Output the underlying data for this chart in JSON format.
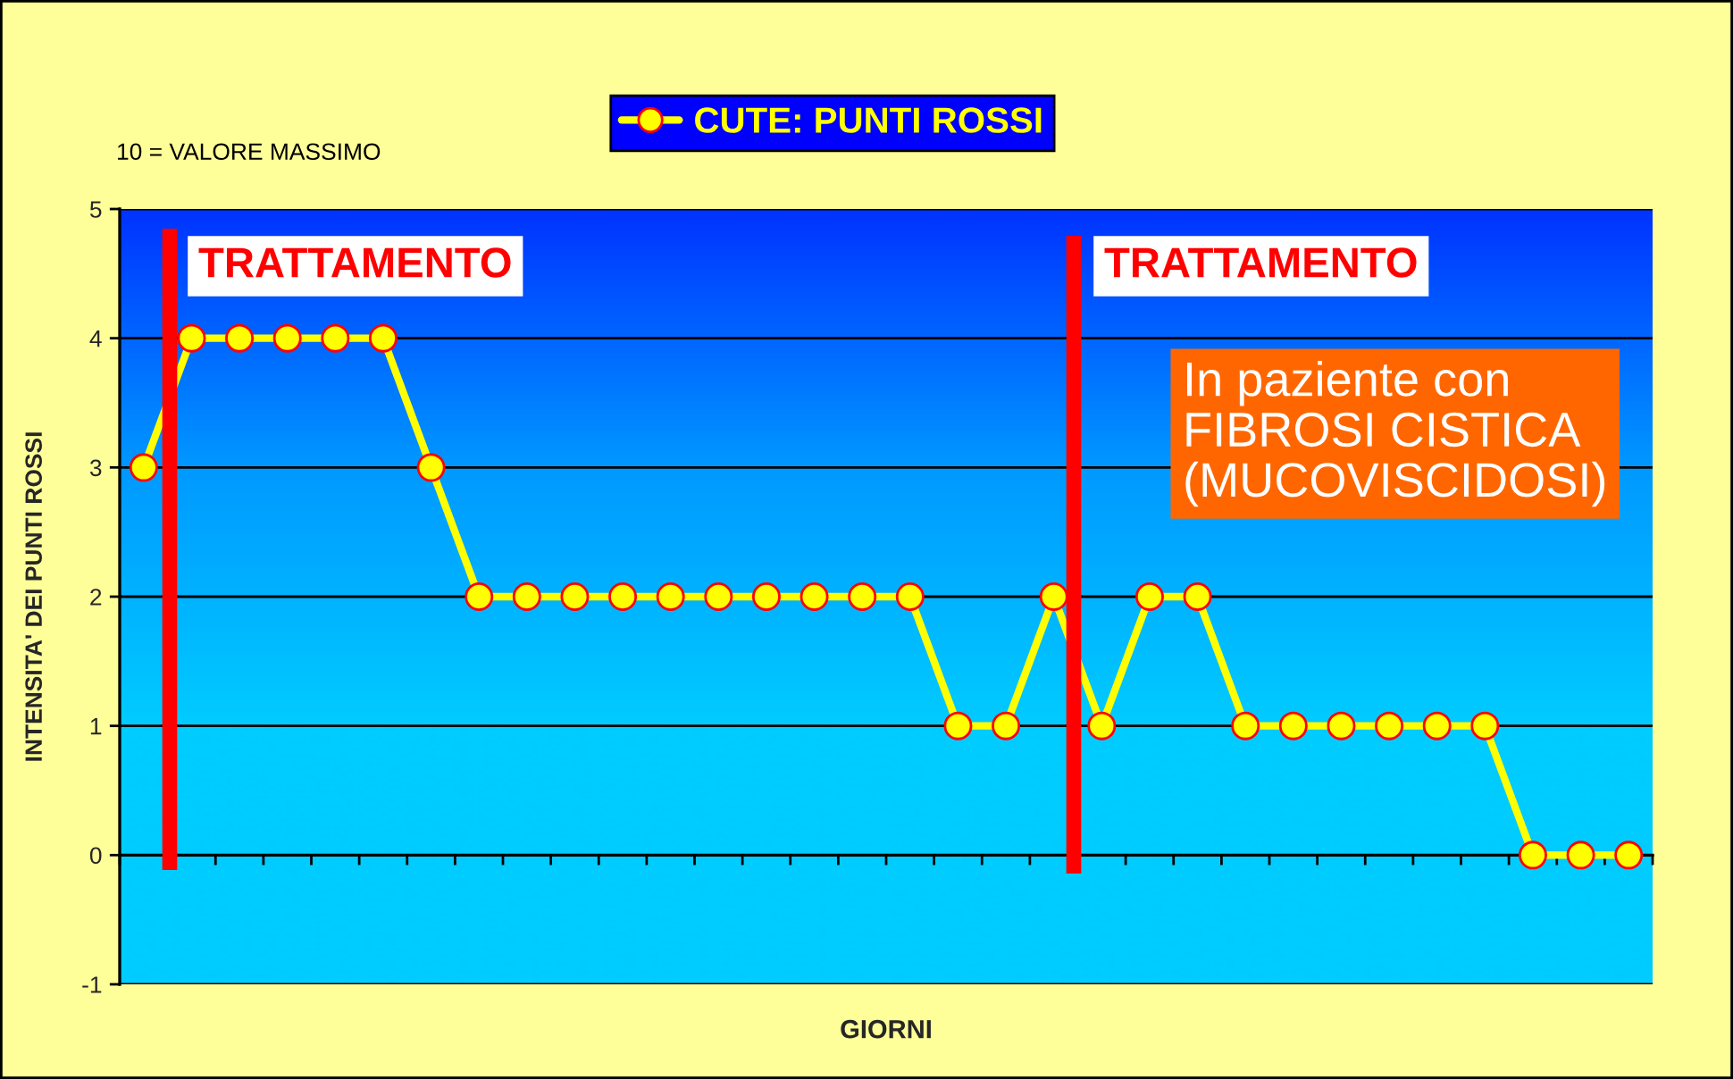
{
  "chart_data": {
    "type": "line",
    "categories": [
      null,
      null,
      null,
      null,
      null,
      null,
      null,
      null,
      null,
      null,
      null,
      null,
      null,
      null,
      null,
      null,
      null,
      null,
      null,
      null,
      null,
      null,
      null,
      null,
      null,
      null,
      null,
      null,
      null,
      null,
      null,
      null
    ],
    "series": [
      {
        "name": "CUTE: PUNTI ROSSI",
        "color": "#ffff00",
        "values": [
          3,
          4,
          4,
          4,
          4,
          4,
          3,
          2,
          2,
          2,
          2,
          2,
          2,
          2,
          2,
          2,
          2,
          1,
          1,
          2,
          1,
          2,
          2,
          1,
          1,
          1,
          1,
          1,
          1,
          0,
          0,
          0
        ]
      }
    ],
    "xlabel": "GIORNI",
    "ylabel": "INTENSITA' DEI PUNTI ROSSI",
    "ylim": [
      -1,
      5
    ],
    "yticks": [
      -1,
      0,
      1,
      2,
      3,
      4,
      5
    ],
    "grid": "y",
    "legend": "top",
    "marker": "circle",
    "line_style": "solid",
    "tick_labels": "y",
    "annotations": [
      "10 = VALORE MASSIMO",
      "TRATTAMENTO",
      "TRATTAMENTO",
      "In paziente con\nFIBROSI CISTICA\n(MUCOVISCIDOSI)"
    ]
  }
}
